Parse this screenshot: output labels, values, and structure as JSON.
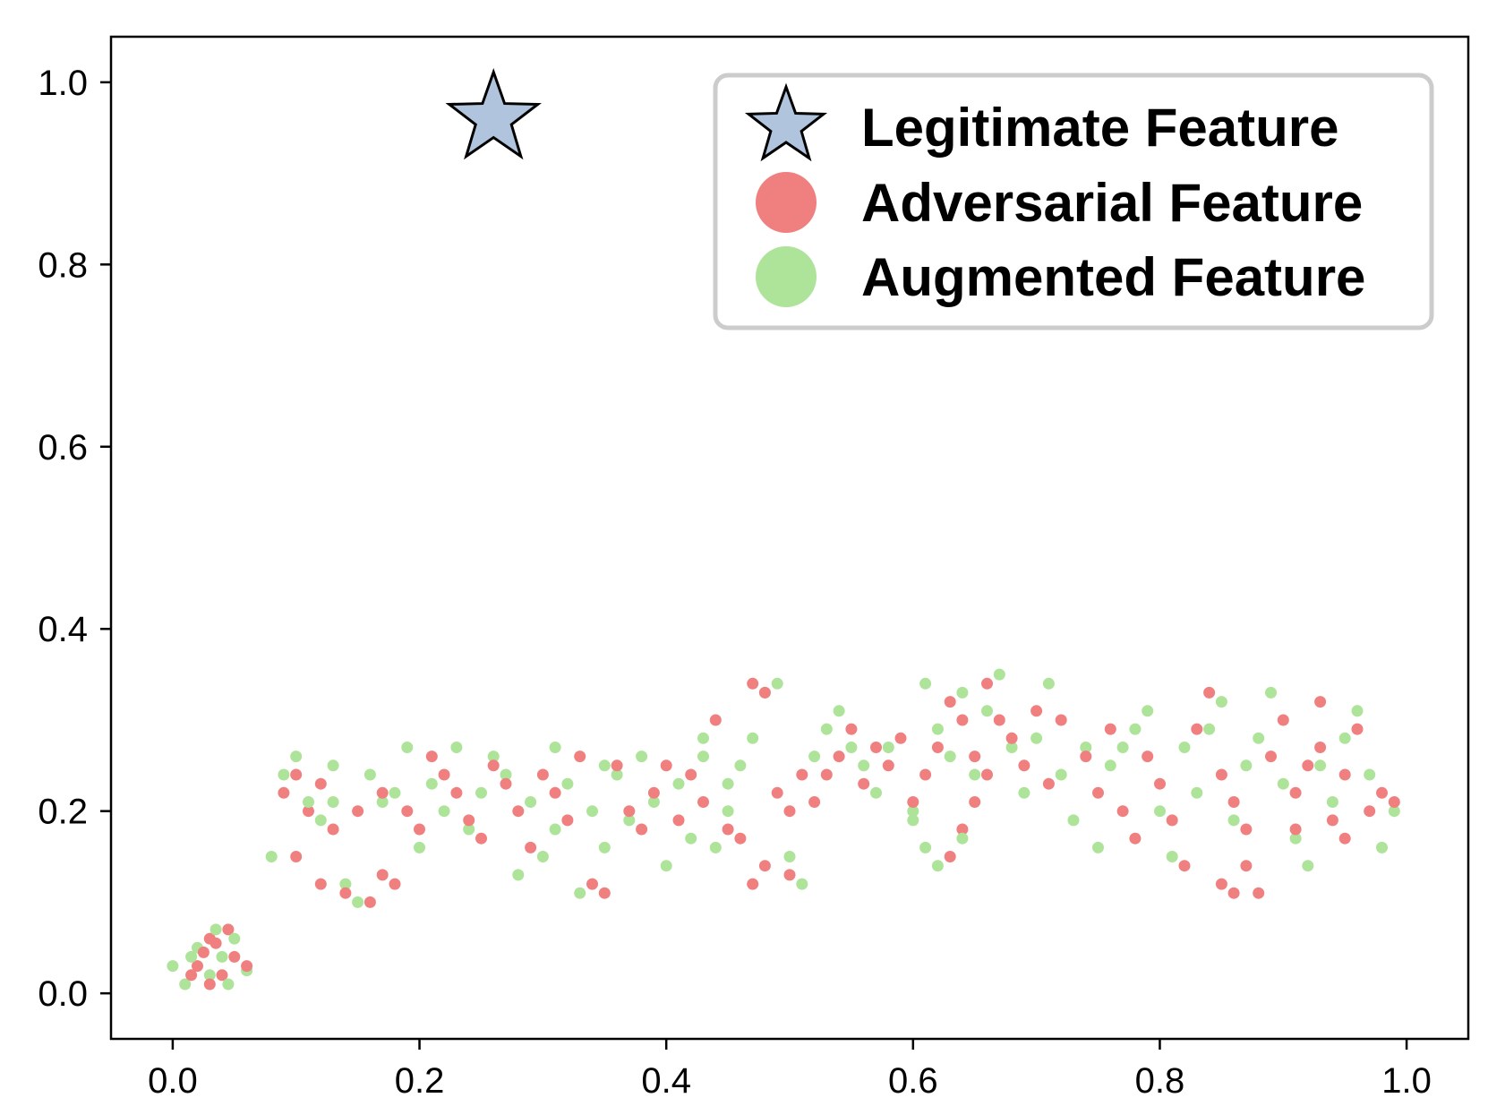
{
  "chart_data": {
    "type": "scatter",
    "title": "",
    "xlabel": "",
    "ylabel": "",
    "xlim": [
      -0.05,
      1.05
    ],
    "ylim": [
      -0.05,
      1.05
    ],
    "grid": false,
    "legend_position": "top-right",
    "x_ticks": [
      {
        "value": 0.0,
        "label": "0.0"
      },
      {
        "value": 0.2,
        "label": "0.2"
      },
      {
        "value": 0.4,
        "label": "0.4"
      },
      {
        "value": 0.6,
        "label": "0.6"
      },
      {
        "value": 0.8,
        "label": "0.8"
      },
      {
        "value": 1.0,
        "label": "1.0"
      }
    ],
    "y_ticks": [
      {
        "value": 0.0,
        "label": "0.0"
      },
      {
        "value": 0.2,
        "label": "0.2"
      },
      {
        "value": 0.4,
        "label": "0.4"
      },
      {
        "value": 0.6,
        "label": "0.6"
      },
      {
        "value": 0.8,
        "label": "0.8"
      },
      {
        "value": 1.0,
        "label": "1.0"
      }
    ],
    "series": [
      {
        "name": "Legitimate Feature",
        "marker": "star",
        "color": "#b0c4de",
        "points": [
          [
            0.26,
            0.96
          ]
        ]
      },
      {
        "name": "Adversarial Feature",
        "marker": "circle",
        "color": "#f08080",
        "points": [
          [
            0.02,
            0.03
          ],
          [
            0.03,
            0.06
          ],
          [
            0.04,
            0.02
          ],
          [
            0.025,
            0.045
          ],
          [
            0.045,
            0.07
          ],
          [
            0.03,
            0.01
          ],
          [
            0.05,
            0.04
          ],
          [
            0.015,
            0.02
          ],
          [
            0.035,
            0.055
          ],
          [
            0.06,
            0.03
          ],
          [
            0.09,
            0.22
          ],
          [
            0.1,
            0.24
          ],
          [
            0.11,
            0.2
          ],
          [
            0.12,
            0.23
          ],
          [
            0.13,
            0.18
          ],
          [
            0.1,
            0.15
          ],
          [
            0.12,
            0.12
          ],
          [
            0.14,
            0.11
          ],
          [
            0.16,
            0.1
          ],
          [
            0.17,
            0.13
          ],
          [
            0.18,
            0.12
          ],
          [
            0.15,
            0.2
          ],
          [
            0.17,
            0.22
          ],
          [
            0.19,
            0.2
          ],
          [
            0.2,
            0.18
          ],
          [
            0.21,
            0.26
          ],
          [
            0.22,
            0.24
          ],
          [
            0.23,
            0.22
          ],
          [
            0.24,
            0.19
          ],
          [
            0.25,
            0.17
          ],
          [
            0.26,
            0.25
          ],
          [
            0.27,
            0.23
          ],
          [
            0.28,
            0.2
          ],
          [
            0.29,
            0.16
          ],
          [
            0.3,
            0.24
          ],
          [
            0.31,
            0.22
          ],
          [
            0.32,
            0.19
          ],
          [
            0.33,
            0.26
          ],
          [
            0.34,
            0.12
          ],
          [
            0.35,
            0.11
          ],
          [
            0.36,
            0.25
          ],
          [
            0.37,
            0.2
          ],
          [
            0.38,
            0.18
          ],
          [
            0.39,
            0.22
          ],
          [
            0.4,
            0.25
          ],
          [
            0.41,
            0.19
          ],
          [
            0.42,
            0.24
          ],
          [
            0.43,
            0.21
          ],
          [
            0.44,
            0.3
          ],
          [
            0.45,
            0.18
          ],
          [
            0.46,
            0.17
          ],
          [
            0.47,
            0.34
          ],
          [
            0.48,
            0.33
          ],
          [
            0.49,
            0.22
          ],
          [
            0.5,
            0.2
          ],
          [
            0.51,
            0.24
          ],
          [
            0.48,
            0.14
          ],
          [
            0.47,
            0.12
          ],
          [
            0.5,
            0.13
          ],
          [
            0.52,
            0.21
          ],
          [
            0.53,
            0.24
          ],
          [
            0.54,
            0.26
          ],
          [
            0.55,
            0.29
          ],
          [
            0.56,
            0.23
          ],
          [
            0.57,
            0.27
          ],
          [
            0.58,
            0.25
          ],
          [
            0.59,
            0.28
          ],
          [
            0.6,
            0.21
          ],
          [
            0.61,
            0.24
          ],
          [
            0.62,
            0.27
          ],
          [
            0.63,
            0.32
          ],
          [
            0.64,
            0.3
          ],
          [
            0.65,
            0.26
          ],
          [
            0.66,
            0.34
          ],
          [
            0.67,
            0.3
          ],
          [
            0.68,
            0.28
          ],
          [
            0.69,
            0.25
          ],
          [
            0.7,
            0.31
          ],
          [
            0.71,
            0.23
          ],
          [
            0.72,
            0.3
          ],
          [
            0.63,
            0.15
          ],
          [
            0.64,
            0.18
          ],
          [
            0.65,
            0.21
          ],
          [
            0.66,
            0.24
          ],
          [
            0.74,
            0.26
          ],
          [
            0.75,
            0.22
          ],
          [
            0.76,
            0.29
          ],
          [
            0.77,
            0.2
          ],
          [
            0.78,
            0.17
          ],
          [
            0.79,
            0.26
          ],
          [
            0.8,
            0.23
          ],
          [
            0.81,
            0.19
          ],
          [
            0.82,
            0.14
          ],
          [
            0.83,
            0.29
          ],
          [
            0.84,
            0.33
          ],
          [
            0.85,
            0.24
          ],
          [
            0.86,
            0.21
          ],
          [
            0.87,
            0.18
          ],
          [
            0.88,
            0.11
          ],
          [
            0.89,
            0.26
          ],
          [
            0.9,
            0.3
          ],
          [
            0.91,
            0.22
          ],
          [
            0.92,
            0.25
          ],
          [
            0.93,
            0.32
          ],
          [
            0.94,
            0.19
          ],
          [
            0.95,
            0.24
          ],
          [
            0.96,
            0.29
          ],
          [
            0.97,
            0.2
          ],
          [
            0.98,
            0.22
          ],
          [
            0.99,
            0.21
          ],
          [
            0.86,
            0.11
          ],
          [
            0.85,
            0.12
          ],
          [
            0.87,
            0.14
          ],
          [
            0.91,
            0.18
          ],
          [
            0.93,
            0.27
          ],
          [
            0.95,
            0.17
          ]
        ]
      },
      {
        "name": "Augmented Feature",
        "marker": "circle",
        "color": "#aee39a",
        "points": [
          [
            0.0,
            0.03
          ],
          [
            0.01,
            0.01
          ],
          [
            0.02,
            0.05
          ],
          [
            0.03,
            0.02
          ],
          [
            0.04,
            0.04
          ],
          [
            0.05,
            0.06
          ],
          [
            0.06,
            0.025
          ],
          [
            0.035,
            0.07
          ],
          [
            0.015,
            0.04
          ],
          [
            0.045,
            0.01
          ],
          [
            0.08,
            0.15
          ],
          [
            0.09,
            0.24
          ],
          [
            0.1,
            0.26
          ],
          [
            0.11,
            0.21
          ],
          [
            0.12,
            0.19
          ],
          [
            0.13,
            0.25
          ],
          [
            0.14,
            0.12
          ],
          [
            0.15,
            0.1
          ],
          [
            0.16,
            0.24
          ],
          [
            0.17,
            0.21
          ],
          [
            0.19,
            0.27
          ],
          [
            0.2,
            0.16
          ],
          [
            0.21,
            0.23
          ],
          [
            0.22,
            0.2
          ],
          [
            0.23,
            0.27
          ],
          [
            0.24,
            0.18
          ],
          [
            0.25,
            0.22
          ],
          [
            0.26,
            0.26
          ],
          [
            0.27,
            0.24
          ],
          [
            0.28,
            0.13
          ],
          [
            0.29,
            0.21
          ],
          [
            0.3,
            0.15
          ],
          [
            0.31,
            0.18
          ],
          [
            0.32,
            0.23
          ],
          [
            0.33,
            0.11
          ],
          [
            0.34,
            0.2
          ],
          [
            0.35,
            0.16
          ],
          [
            0.36,
            0.24
          ],
          [
            0.37,
            0.19
          ],
          [
            0.38,
            0.26
          ],
          [
            0.39,
            0.21
          ],
          [
            0.4,
            0.14
          ],
          [
            0.41,
            0.23
          ],
          [
            0.42,
            0.17
          ],
          [
            0.43,
            0.26
          ],
          [
            0.44,
            0.16
          ],
          [
            0.45,
            0.2
          ],
          [
            0.46,
            0.25
          ],
          [
            0.47,
            0.28
          ],
          [
            0.48,
            0.33
          ],
          [
            0.49,
            0.34
          ],
          [
            0.5,
            0.15
          ],
          [
            0.51,
            0.12
          ],
          [
            0.52,
            0.26
          ],
          [
            0.53,
            0.29
          ],
          [
            0.54,
            0.31
          ],
          [
            0.55,
            0.27
          ],
          [
            0.56,
            0.25
          ],
          [
            0.57,
            0.22
          ],
          [
            0.58,
            0.27
          ],
          [
            0.6,
            0.2
          ],
          [
            0.61,
            0.34
          ],
          [
            0.62,
            0.29
          ],
          [
            0.63,
            0.26
          ],
          [
            0.64,
            0.33
          ],
          [
            0.65,
            0.24
          ],
          [
            0.66,
            0.31
          ],
          [
            0.67,
            0.35
          ],
          [
            0.68,
            0.27
          ],
          [
            0.69,
            0.22
          ],
          [
            0.7,
            0.28
          ],
          [
            0.71,
            0.34
          ],
          [
            0.72,
            0.24
          ],
          [
            0.73,
            0.19
          ],
          [
            0.74,
            0.27
          ],
          [
            0.75,
            0.16
          ],
          [
            0.76,
            0.25
          ],
          [
            0.77,
            0.27
          ],
          [
            0.78,
            0.29
          ],
          [
            0.79,
            0.31
          ],
          [
            0.8,
            0.2
          ],
          [
            0.81,
            0.15
          ],
          [
            0.82,
            0.27
          ],
          [
            0.83,
            0.22
          ],
          [
            0.84,
            0.29
          ],
          [
            0.85,
            0.32
          ],
          [
            0.86,
            0.19
          ],
          [
            0.87,
            0.25
          ],
          [
            0.88,
            0.28
          ],
          [
            0.89,
            0.33
          ],
          [
            0.9,
            0.23
          ],
          [
            0.91,
            0.17
          ],
          [
            0.92,
            0.14
          ],
          [
            0.93,
            0.25
          ],
          [
            0.94,
            0.21
          ],
          [
            0.95,
            0.28
          ],
          [
            0.96,
            0.31
          ],
          [
            0.97,
            0.24
          ],
          [
            0.98,
            0.16
          ],
          [
            0.99,
            0.2
          ],
          [
            0.6,
            0.19
          ],
          [
            0.61,
            0.16
          ],
          [
            0.62,
            0.14
          ],
          [
            0.64,
            0.17
          ],
          [
            0.45,
            0.23
          ],
          [
            0.43,
            0.28
          ],
          [
            0.35,
            0.25
          ],
          [
            0.31,
            0.27
          ],
          [
            0.18,
            0.22
          ],
          [
            0.13,
            0.21
          ]
        ]
      }
    ]
  }
}
